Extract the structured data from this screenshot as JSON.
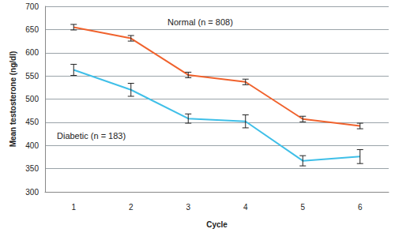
{
  "chart_data": {
    "type": "line",
    "x_label": "Cycle",
    "y_label": "Mean testosterone (ng/dl)",
    "categories": [
      "1",
      "2",
      "3",
      "4",
      "5",
      "6"
    ],
    "ylim": [
      300,
      700
    ],
    "yticks": [
      300,
      350,
      400,
      450,
      500,
      550,
      600,
      650,
      700
    ],
    "grid": true,
    "series": [
      {
        "name": "Normal (n = 808)",
        "color": "#f0622d",
        "values": [
          655,
          631,
          552,
          537,
          457,
          442
        ],
        "errors": [
          6,
          6,
          6,
          6,
          6,
          6
        ]
      },
      {
        "name": "Diabetic (n = 183)",
        "color": "#3fbfe8",
        "values": [
          563,
          520,
          458,
          452,
          367,
          376
        ],
        "errors": [
          12,
          14,
          10,
          14,
          11,
          15
        ]
      }
    ]
  }
}
